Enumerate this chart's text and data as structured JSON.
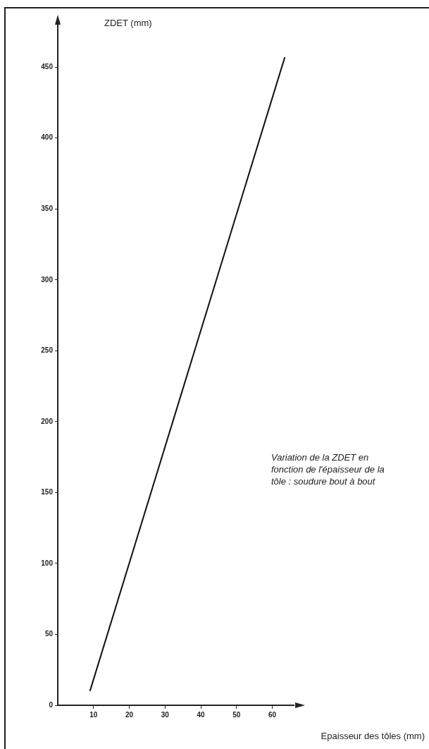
{
  "chart_data": {
    "type": "line",
    "xlabel": "Epaisseur des tôles (mm)",
    "ylabel": "ZDET (mm)",
    "annotations": [
      "Variation de la ZDET en fonction de l'épaisseur de la tôle : soudure bout à bout"
    ],
    "x": [
      9,
      63.5
    ],
    "series": [
      {
        "color": "#111111",
        "values": [
          10,
          457
        ]
      }
    ],
    "xlim": [
      0,
      66
    ],
    "xticks": [
      10,
      20,
      30,
      40,
      50,
      60
    ],
    "ylim": [
      0,
      470
    ],
    "yticks": [
      0,
      50,
      100,
      150,
      200,
      250,
      300,
      350,
      400,
      450
    ],
    "grid": false,
    "legend": false,
    "marker": "none",
    "line_style": "solid"
  }
}
